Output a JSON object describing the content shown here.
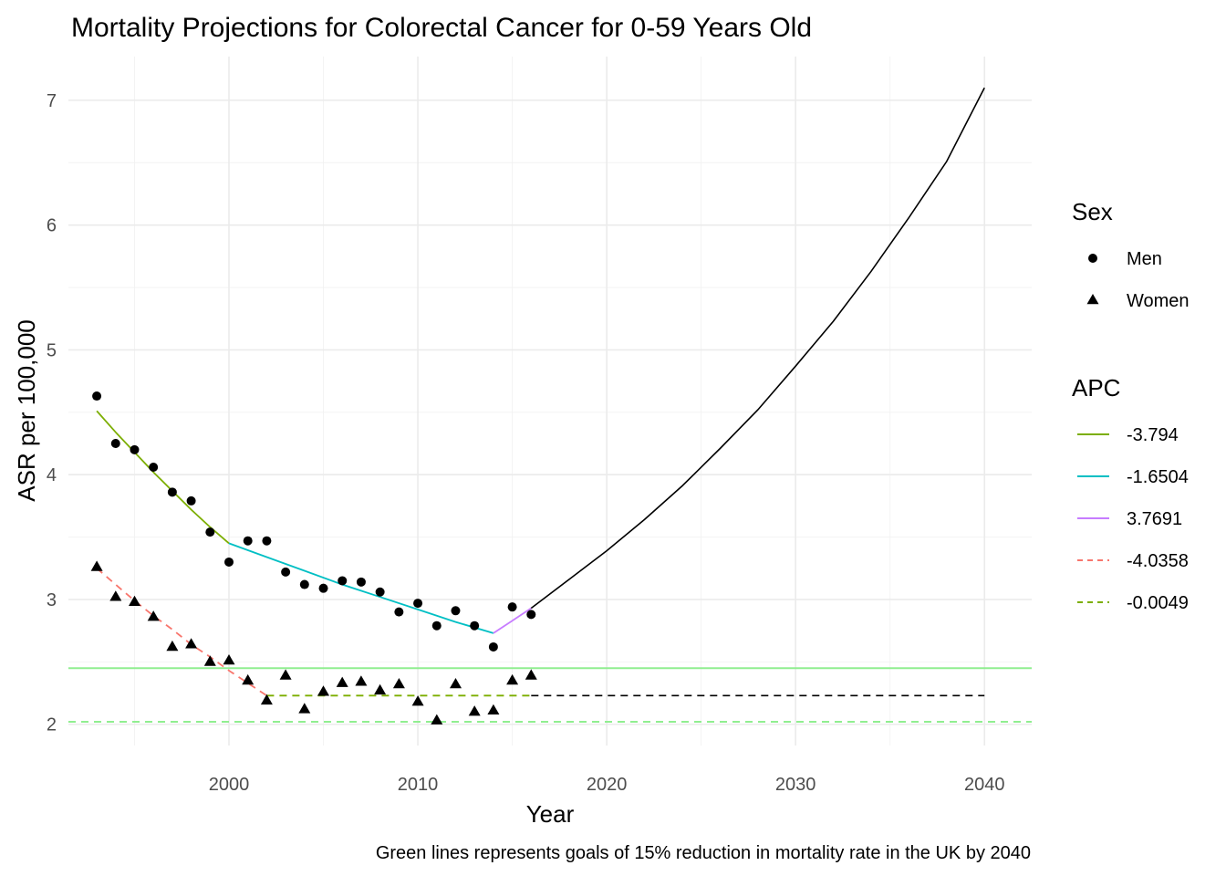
{
  "chart_data": {
    "type": "line",
    "title": "Mortality Projections for Colorectal Cancer for 0-59 Years Old",
    "xlabel": "Year",
    "ylabel": "ASR per 100,000",
    "caption": "Green lines represents goals of 15% reduction in mortality rate in the UK by 2040",
    "xlim": [
      1991.5,
      2042.5
    ],
    "ylim": [
      1.83,
      7.35
    ],
    "x_ticks": [
      2000,
      2010,
      2020,
      2030,
      2040
    ],
    "y_ticks": [
      2,
      3,
      4,
      5,
      6,
      7
    ],
    "grid": true,
    "legend_position": "right",
    "sex_legend": {
      "title": "Sex",
      "items": [
        {
          "label": "Men",
          "shape": "circle"
        },
        {
          "label": "Women",
          "shape": "triangle"
        }
      ]
    },
    "apc_legend": {
      "title": "APC",
      "items": [
        {
          "label": "-3.794",
          "color": "#7cae00",
          "dash": "solid"
        },
        {
          "label": "-1.6504",
          "color": "#00bfc4",
          "dash": "solid"
        },
        {
          "label": "3.7691",
          "color": "#c77cff",
          "dash": "solid"
        },
        {
          "label": "-4.0358",
          "color": "#f8766d",
          "dash": "dashed"
        },
        {
          "label": "-0.0049",
          "color": "#7cae00",
          "dash": "dashed"
        }
      ]
    },
    "men_points": {
      "x": [
        1993,
        1994,
        1995,
        1996,
        1997,
        1998,
        1999,
        2000,
        2001,
        2002,
        2003,
        2004,
        2005,
        2006,
        2007,
        2008,
        2009,
        2010,
        2011,
        2012,
        2013,
        2014,
        2015,
        2016
      ],
      "y": [
        4.63,
        4.25,
        4.2,
        4.06,
        3.86,
        3.79,
        3.54,
        3.3,
        3.47,
        3.47,
        3.22,
        3.12,
        3.09,
        3.15,
        3.14,
        3.06,
        2.9,
        2.97,
        2.79,
        2.91,
        2.79,
        2.62,
        2.94,
        2.88
      ]
    },
    "women_points": {
      "x": [
        1993,
        1994,
        1995,
        1996,
        1997,
        1998,
        1999,
        2000,
        2001,
        2002,
        2003,
        2004,
        2005,
        2006,
        2007,
        2008,
        2009,
        2010,
        2011,
        2012,
        2013,
        2014,
        2015,
        2016
      ],
      "y": [
        3.26,
        3.02,
        2.98,
        2.86,
        2.62,
        2.64,
        2.5,
        2.51,
        2.35,
        2.19,
        2.39,
        2.12,
        2.26,
        2.33,
        2.34,
        2.27,
        2.32,
        2.18,
        2.03,
        2.32,
        2.1,
        2.11,
        2.35,
        2.39
      ]
    },
    "segments": [
      {
        "apc": "-3.794",
        "color": "#7cae00",
        "dash": "solid",
        "x": [
          1993,
          1994,
          1995,
          1996,
          1997,
          1998,
          1999,
          2000
        ],
        "y": [
          4.51,
          4.34,
          4.18,
          4.02,
          3.87,
          3.72,
          3.58,
          3.45
        ]
      },
      {
        "apc": "-1.6504",
        "color": "#00bfc4",
        "dash": "solid",
        "x": [
          2000,
          2002,
          2004,
          2006,
          2008,
          2010,
          2012,
          2014
        ],
        "y": [
          3.45,
          3.34,
          3.23,
          3.12,
          3.02,
          2.92,
          2.82,
          2.73
        ]
      },
      {
        "apc": "3.7691",
        "color": "#c77cff",
        "dash": "solid",
        "x": [
          2014,
          2015,
          2016
        ],
        "y": [
          2.73,
          2.83,
          2.93
        ]
      },
      {
        "apc": "-4.0358",
        "color": "#f8766d",
        "dash": "dashed",
        "x": [
          1993,
          1994,
          1995,
          1996,
          1997,
          1998,
          1999,
          2000,
          2001,
          2002
        ],
        "y": [
          3.25,
          3.12,
          2.99,
          2.87,
          2.76,
          2.64,
          2.54,
          2.43,
          2.33,
          2.23
        ]
      },
      {
        "apc": "-0.0049",
        "color": "#7cae00",
        "dash": "dashed",
        "x": [
          2002,
          2016
        ],
        "y": [
          2.23,
          2.23
        ]
      }
    ],
    "projections": [
      {
        "sex": "Men",
        "color": "#000000",
        "dash": "solid",
        "x": [
          2016,
          2018,
          2020,
          2022,
          2024,
          2026,
          2028,
          2030,
          2032,
          2034,
          2036,
          2038,
          2040
        ],
        "y": [
          2.93,
          3.16,
          3.39,
          3.64,
          3.91,
          4.21,
          4.52,
          4.87,
          5.23,
          5.63,
          6.06,
          6.51,
          7.1
        ]
      },
      {
        "sex": "Women",
        "color": "#000000",
        "dash": "dashed",
        "x": [
          2016,
          2040
        ],
        "y": [
          2.23,
          2.23
        ]
      }
    ],
    "goal_lines": [
      {
        "color": "#90ee90",
        "dash": "solid",
        "y": 2.45
      },
      {
        "color": "#90ee90",
        "dash": "dashed",
        "y": 2.02
      }
    ]
  }
}
